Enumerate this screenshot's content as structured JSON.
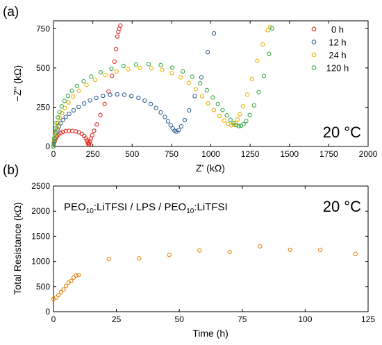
{
  "chart_data": [
    {
      "type": "scatter",
      "panel_label": "(a)",
      "annotation": "20 °C",
      "xlabel": "Z' (kΩ)",
      "ylabel": "−Z\" (kΩ)",
      "xlim": [
        0,
        2000
      ],
      "ylim": [
        0,
        800
      ],
      "xticks": [
        "0",
        "250",
        "500",
        "750",
        "1000",
        "1250",
        "1500",
        "1750",
        "2000"
      ],
      "yticks": [
        "0",
        "250",
        "500",
        "750"
      ],
      "grid": false,
      "legend_position": "top-right",
      "series": [
        {
          "name": "0 h",
          "color": "#e0281e",
          "x": [
            0,
            4,
            8,
            14,
            22,
            32,
            45,
            60,
            78,
            98,
            120,
            142,
            162,
            180,
            195,
            206,
            213,
            218,
            222,
            225,
            228,
            232,
            238,
            246,
            258,
            275,
            298,
            325,
            350,
            372,
            388,
            398,
            406,
            412,
            418,
            425
          ],
          "y": [
            0,
            18,
            34,
            50,
            64,
            76,
            86,
            93,
            98,
            100,
            99,
            96,
            90,
            80,
            67,
            52,
            38,
            25,
            14,
            12,
            20,
            32,
            50,
            72,
            100,
            140,
            200,
            270,
            350,
            450,
            540,
            620,
            700,
            730,
            750,
            770
          ]
        },
        {
          "name": "12 h",
          "color": "#2f5f96",
          "x": [
            0,
            2,
            5,
            8,
            12,
            18,
            25,
            34,
            46,
            60,
            78,
            100,
            128,
            160,
            195,
            232,
            272,
            315,
            360,
            405,
            450,
            495,
            540,
            580,
            618,
            652,
            682,
            708,
            728,
            745,
            758,
            770,
            782,
            795,
            812,
            834,
            862,
            898,
            940,
            980,
            1020
          ],
          "y": [
            0,
            15,
            32,
            50,
            68,
            88,
            108,
            128,
            148,
            168,
            188,
            208,
            230,
            252,
            274,
            294,
            310,
            322,
            330,
            332,
            330,
            322,
            310,
            292,
            270,
            245,
            217,
            188,
            160,
            135,
            115,
            100,
            95,
            104,
            128,
            168,
            230,
            320,
            440,
            600,
            720
          ]
        },
        {
          "name": "24 h",
          "color": "#f0b000",
          "x": [
            0,
            3,
            6,
            10,
            15,
            22,
            30,
            40,
            54,
            72,
            95,
            125,
            162,
            210,
            265,
            330,
            400,
            475,
            550,
            622,
            690,
            752,
            808,
            860,
            905,
            945,
            982,
            1020,
            1055,
            1085,
            1110,
            1130,
            1145,
            1158,
            1170,
            1185,
            1205,
            1232,
            1262,
            1295,
            1330,
            1362,
            1378
          ],
          "y": [
            0,
            20,
            42,
            66,
            92,
            122,
            152,
            182,
            212,
            245,
            280,
            318,
            355,
            392,
            425,
            455,
            478,
            492,
            500,
            498,
            487,
            467,
            440,
            405,
            365,
            320,
            275,
            232,
            195,
            165,
            145,
            135,
            138,
            150,
            172,
            205,
            255,
            330,
            430,
            545,
            650,
            740,
            760
          ]
        },
        {
          "name": "120 h",
          "color": "#3aaa48",
          "x": [
            0,
            2,
            5,
            9,
            14,
            20,
            28,
            38,
            52,
            70,
            92,
            118,
            150,
            192,
            240,
            300,
            368,
            445,
            525,
            605,
            682,
            755,
            822,
            882,
            932,
            975,
            1012,
            1045,
            1075,
            1102,
            1125,
            1145,
            1162,
            1178,
            1192,
            1208,
            1225,
            1248,
            1275,
            1305,
            1338,
            1370,
            1390
          ],
          "y": [
            0,
            25,
            52,
            82,
            115,
            150,
            185,
            220,
            255,
            290,
            322,
            355,
            385,
            415,
            445,
            472,
            495,
            512,
            522,
            524,
            518,
            502,
            478,
            444,
            402,
            358,
            312,
            270,
            232,
            198,
            170,
            150,
            136,
            130,
            132,
            142,
            162,
            200,
            262,
            345,
            450,
            590,
            752
          ]
        }
      ]
    },
    {
      "type": "scatter",
      "panel_label": "(b)",
      "annotation": "20 °C",
      "inset_text": {
        "p1": "PEO",
        "s1": "10",
        "p2": ":LiTFSI / LPS / PEO",
        "s2": "10",
        "p3": ":LiTFSI"
      },
      "xlabel": "Time (h)",
      "ylabel": "Total Resistance (kΩ)",
      "xlim": [
        0,
        125
      ],
      "ylim": [
        0,
        2500
      ],
      "xticks": [
        "0",
        "25",
        "50",
        "75",
        "100",
        "125"
      ],
      "yticks": [
        "0",
        "500",
        "1000",
        "1500",
        "2000",
        "2500"
      ],
      "grid": false,
      "series": [
        {
          "name": "",
          "color": "#e8820e",
          "x": [
            0,
            1,
            2,
            3,
            4,
            5,
            6,
            7,
            8,
            9,
            10,
            22,
            34,
            46,
            58,
            70,
            82,
            94,
            106,
            120
          ],
          "y": [
            250,
            280,
            330,
            390,
            440,
            510,
            580,
            610,
            680,
            720,
            730,
            1050,
            1060,
            1130,
            1220,
            1190,
            1300,
            1230,
            1230,
            1150
          ]
        }
      ]
    }
  ]
}
